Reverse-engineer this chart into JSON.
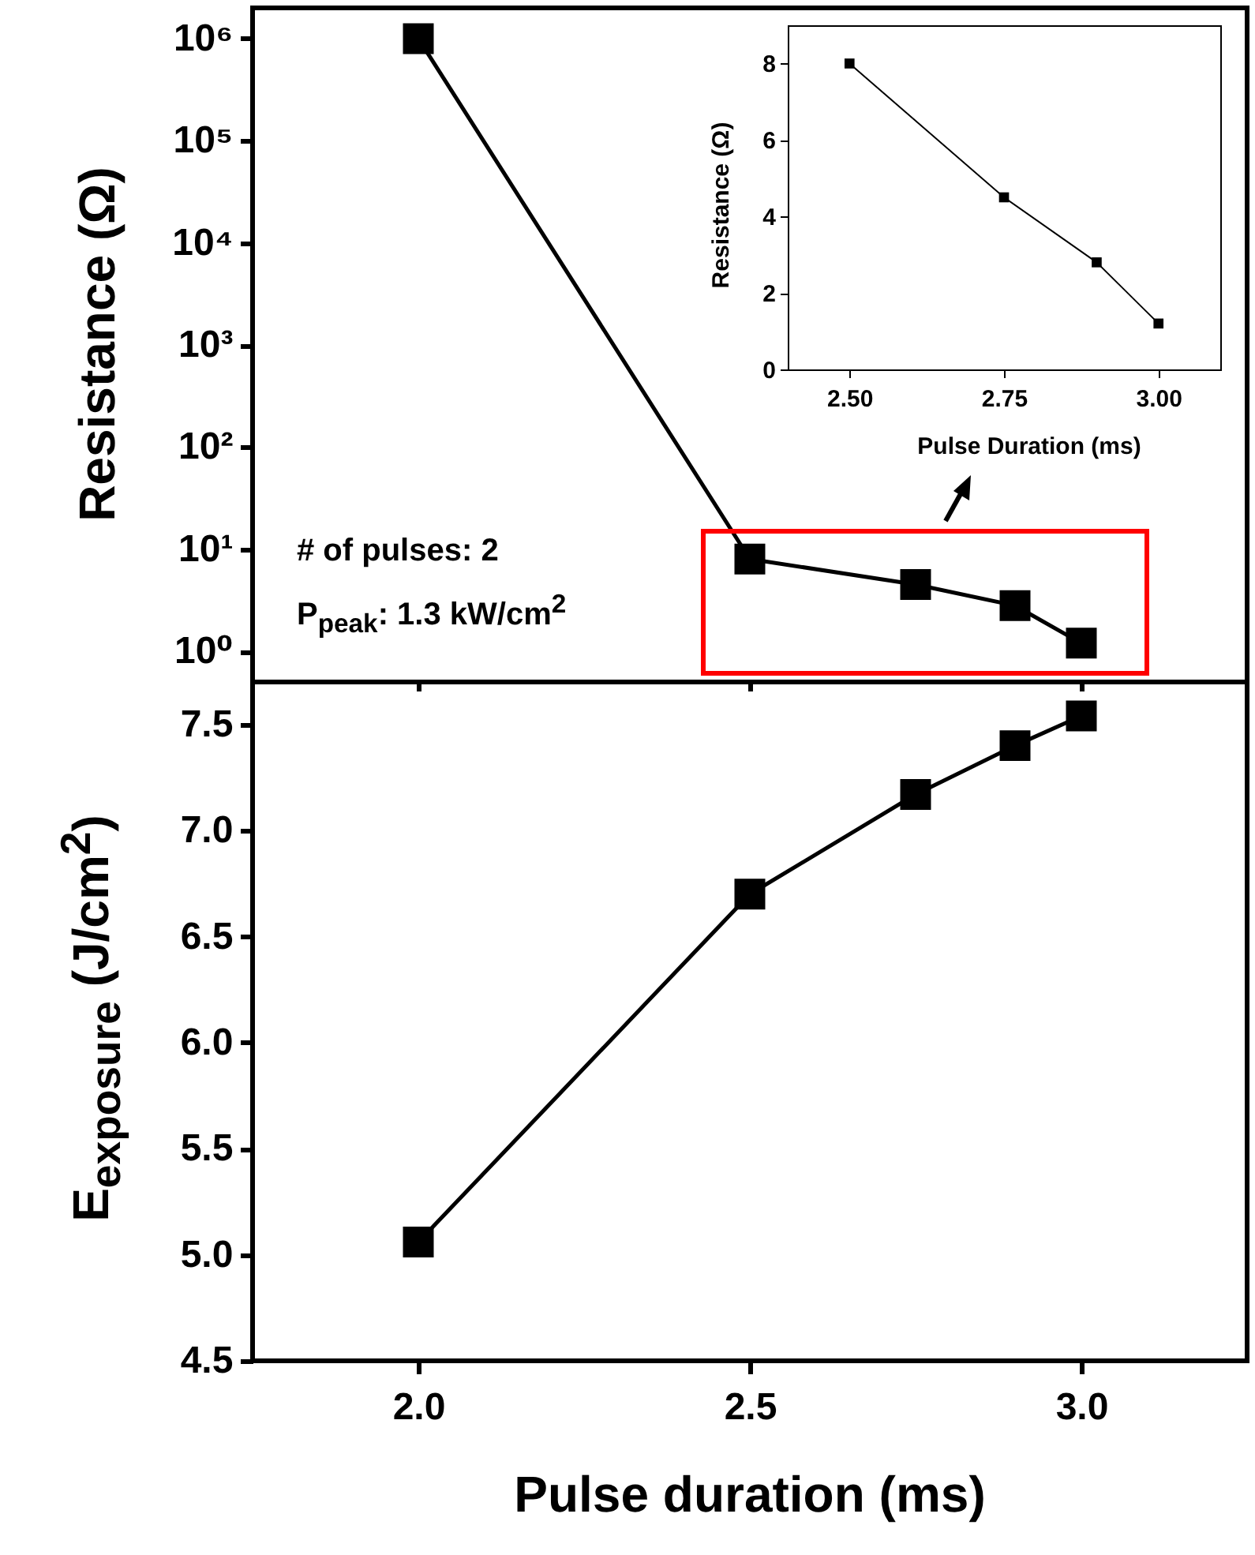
{
  "chart_data": [
    {
      "type": "line",
      "ylabel": "Resistance (Ω)",
      "x": [
        2.0,
        2.5,
        2.75,
        2.9,
        3.0
      ],
      "series": [
        {
          "color": "#000000",
          "values": [
            1000000,
            8,
            4.5,
            2.8,
            1.2
          ]
        }
      ],
      "xlim": [
        1.75,
        3.25
      ],
      "xticks": [
        {
          "value": 2,
          "label": null
        },
        {
          "value": 2.5,
          "label": null
        },
        {
          "value": 3,
          "label": null
        }
      ],
      "ylim": [
        0.5,
        2000000
      ],
      "yticks": [
        {
          "value": 1,
          "label": "10⁰"
        },
        {
          "value": 10,
          "label": "10¹"
        },
        {
          "value": 100,
          "label": "10²"
        },
        {
          "value": 1000,
          "label": "10³"
        },
        {
          "value": 10000,
          "label": "10⁴"
        },
        {
          "value": 100000,
          "label": "10⁵"
        },
        {
          "value": 1000000,
          "label": "10⁶"
        }
      ],
      "log": "y",
      "tick_labels": "y",
      "marker": "square",
      "line_style": "solid",
      "grid": false,
      "legend": false,
      "annotations": [
        "# of pulses: 2",
        "P$_{peak}$: 1.3 kW/cm$^{2}$"
      ]
    },
    {
      "type": "line",
      "xlabel": "Pulse duration (ms)",
      "ylabel": "E$_{exposure}$ (J/cm$^{2}$)",
      "x": [
        2.0,
        2.5,
        2.75,
        2.9,
        3.0
      ],
      "series": [
        {
          "color": "#000000",
          "values": [
            5.06,
            6.7,
            7.17,
            7.4,
            7.54
          ]
        }
      ],
      "xlim": [
        1.75,
        3.25
      ],
      "xticks": [
        {
          "value": 2,
          "label": "2.0"
        },
        2.5,
        {
          "value": 3,
          "label": "3.0"
        }
      ],
      "ylim": [
        4.5,
        7.7
      ],
      "yticks": [
        4.5,
        {
          "value": 5,
          "label": "5.0"
        },
        5.5,
        {
          "value": 6,
          "label": "6.0"
        },
        6.5,
        {
          "value": 7,
          "label": "7.0"
        },
        7.5
      ],
      "marker": "square",
      "line_style": "solid",
      "grid": false,
      "legend": false
    },
    {
      "type": "line",
      "xlabel": "Pulse Duration (ms)",
      "ylabel": "Resistance (Ω)",
      "x": [
        2.5,
        2.75,
        2.9,
        3.0
      ],
      "series": [
        {
          "color": "#000000",
          "values": [
            8,
            4.5,
            2.8,
            1.2
          ]
        }
      ],
      "xlim": [
        2.4,
        3.1
      ],
      "xticks": [
        {
          "value": 2.5,
          "label": "2.50"
        },
        2.75,
        {
          "value": 3,
          "label": "3.00"
        }
      ],
      "ylim": [
        0,
        9
      ],
      "yticks": [
        0,
        2,
        4,
        6,
        8
      ],
      "marker": "square",
      "line_style": "solid",
      "grid": false,
      "legend": false
    }
  ]
}
